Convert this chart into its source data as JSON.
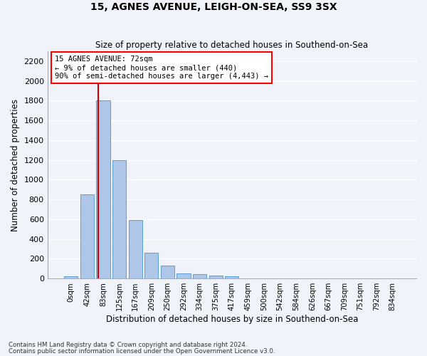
{
  "title": "15, AGNES AVENUE, LEIGH-ON-SEA, SS9 3SX",
  "subtitle": "Size of property relative to detached houses in Southend-on-Sea",
  "xlabel": "Distribution of detached houses by size in Southend-on-Sea",
  "ylabel": "Number of detached properties",
  "footnote1": "Contains HM Land Registry data © Crown copyright and database right 2024.",
  "footnote2": "Contains public sector information licensed under the Open Government Licence v3.0.",
  "bar_labels": [
    "0sqm",
    "42sqm",
    "83sqm",
    "125sqm",
    "167sqm",
    "209sqm",
    "250sqm",
    "292sqm",
    "334sqm",
    "375sqm",
    "417sqm",
    "459sqm",
    "500sqm",
    "542sqm",
    "584sqm",
    "626sqm",
    "667sqm",
    "709sqm",
    "751sqm",
    "792sqm",
    "834sqm"
  ],
  "bar_values": [
    25,
    850,
    1800,
    1200,
    590,
    260,
    130,
    50,
    45,
    30,
    20,
    0,
    0,
    0,
    0,
    0,
    0,
    0,
    0,
    0,
    0
  ],
  "bar_color": "#aec6e8",
  "bar_edgecolor": "#5a9fd4",
  "ylim": [
    0,
    2300
  ],
  "yticks": [
    0,
    200,
    400,
    600,
    800,
    1000,
    1200,
    1400,
    1600,
    1800,
    2000,
    2200
  ],
  "property_line_bin": 1.71,
  "annotation_title": "15 AGNES AVENUE: 72sqm",
  "annotation_line1": "← 9% of detached houses are smaller (440)",
  "annotation_line2": "90% of semi-detached houses are larger (4,443) →",
  "vline_color": "#cc0000",
  "background_color": "#f0f4fa",
  "grid_color": "#ffffff"
}
